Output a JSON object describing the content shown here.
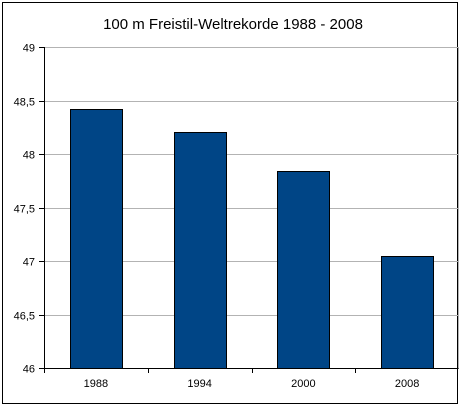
{
  "chart_data": {
    "type": "bar",
    "title": "100 m Freistil-Weltrekorde 1988 - 2008",
    "xlabel": "",
    "ylabel": "",
    "categories": [
      "1988",
      "1994",
      "2000",
      "2008"
    ],
    "values": [
      48.42,
      48.21,
      47.84,
      47.05
    ],
    "ylim": [
      46,
      49
    ],
    "yticks": [
      "46",
      "46,5",
      "47",
      "47,5",
      "48",
      "48,5",
      "49"
    ],
    "grid": true,
    "legend": "none",
    "colors": {
      "bar": "#004586",
      "grid": "#b3b3b3",
      "axis": "#000000",
      "text": "#000000"
    }
  }
}
